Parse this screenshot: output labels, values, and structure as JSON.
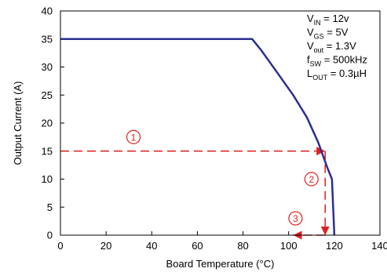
{
  "chart_data": {
    "type": "line",
    "title": "",
    "xlabel": "Board Temperature (°C)",
    "ylabel": "Output Current (A)",
    "xlim": [
      0,
      140
    ],
    "ylim": [
      0,
      40
    ],
    "xticks": [
      "0",
      "20",
      "40",
      "60",
      "80",
      "100",
      "120",
      "140"
    ],
    "yticks": [
      "0",
      "5",
      "10",
      "15",
      "20",
      "25",
      "30",
      "35",
      "40"
    ],
    "grid": false,
    "series": [
      {
        "x": [
          0,
          84,
          88,
          95,
          102,
          108,
          113,
          117,
          119,
          119.5,
          120
        ],
        "y": [
          35,
          35,
          33,
          29,
          25,
          21,
          16.5,
          12,
          10,
          5,
          0
        ]
      }
    ],
    "annotations": {
      "conditions": [
        {
          "main": "V",
          "sub": "IN",
          "rest": " = 12v"
        },
        {
          "main": "V",
          "sub": "GS",
          "rest": " = 5V"
        },
        {
          "main": "V",
          "sub": "out",
          "rest": " = 1.3V"
        },
        {
          "main": "f",
          "sub": "SW",
          "rest": " = 500kHz"
        },
        {
          "main": "L",
          "sub": "OUT",
          "rest": " = 0.3µH"
        }
      ],
      "steps": [
        {
          "label": "1",
          "from": [
            0,
            15
          ],
          "to": [
            116,
            15
          ],
          "label_at": [
            32,
            17.5
          ]
        },
        {
          "label": "2",
          "from": [
            116,
            15
          ],
          "to": [
            116,
            0
          ],
          "label_at": [
            110,
            10
          ]
        },
        {
          "label": "3",
          "from": [
            116,
            0
          ],
          "to": [
            102,
            0
          ],
          "label_at": [
            103,
            3
          ]
        }
      ]
    },
    "colors": {
      "curve": "#2b2f8f",
      "steps": "#e02020"
    }
  }
}
